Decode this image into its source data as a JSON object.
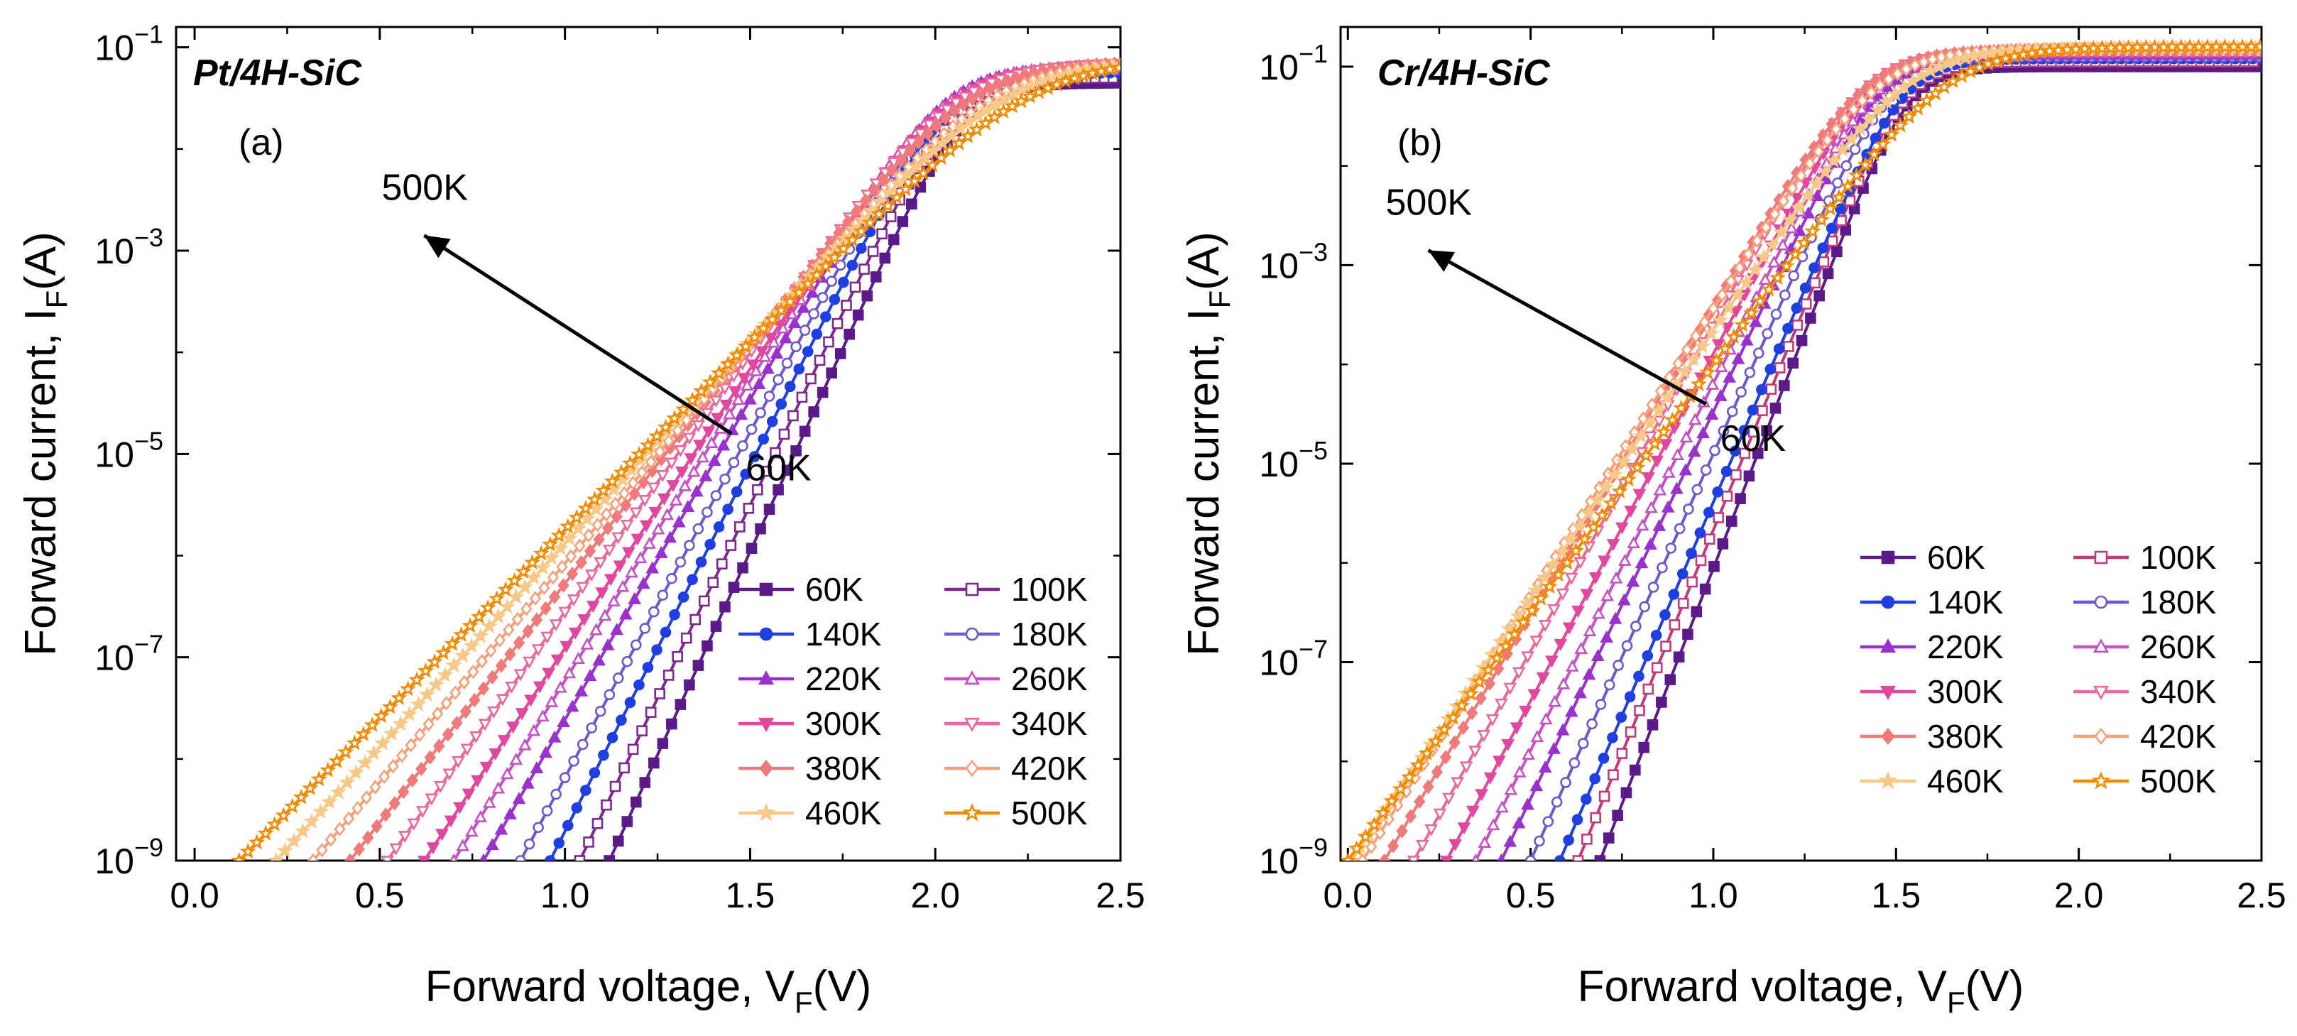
{
  "chart_data": [
    {
      "type": "line",
      "panel_title": "Pt/4H-SiC",
      "panel_tag": "(a)",
      "xlabel": "Forward voltage, V",
      "xlabel_sub": "F",
      "xlabel_unit": "(V)",
      "ylabel": "Forward current,  I",
      "ylabel_sub": "F",
      "ylabel_unit": "(A)",
      "yscale": "log",
      "xlim": [
        -0.05,
        2.5
      ],
      "ylim_exp": [
        -9,
        -0.8
      ],
      "xticks": [
        "0.0",
        "0.5",
        "1.0",
        "1.5",
        "2.0",
        "2.5"
      ],
      "xtick_values": [
        0,
        0.5,
        1.0,
        1.5,
        2.0,
        2.5
      ],
      "yticks_exp": [
        -9,
        -7,
        -5,
        -3,
        -1
      ],
      "arrow": {
        "from_label": "60K",
        "to_label": "500K",
        "from": [
          1.45,
          -4.8
        ],
        "to": [
          0.62,
          -2.85
        ]
      },
      "series": [
        {
          "name": "60K",
          "color": "#5a1a8a",
          "marker": "square-filled",
          "onset": 1.12,
          "slope": 8.0,
          "sat": -1.35
        },
        {
          "name": "100K",
          "color": "#7b2a8c",
          "marker": "square-open",
          "onset": 1.04,
          "slope": 7.6,
          "sat": -1.3
        },
        {
          "name": "140K",
          "color": "#1f3fe0",
          "marker": "circle-filled",
          "onset": 0.96,
          "slope": 7.2,
          "sat": -1.25
        },
        {
          "name": "180K",
          "color": "#6a5acd",
          "marker": "circle-open",
          "onset": 0.88,
          "slope": 6.8,
          "sat": -1.22
        },
        {
          "name": "220K",
          "color": "#9932cc",
          "marker": "triangle-filled",
          "onset": 0.78,
          "slope": 6.3,
          "sat": -1.2
        },
        {
          "name": "260K",
          "color": "#c452c4",
          "marker": "triangle-open",
          "onset": 0.7,
          "slope": 5.9,
          "sat": -1.18
        },
        {
          "name": "300K",
          "color": "#e0479e",
          "marker": "tridown-filled",
          "onset": 0.62,
          "slope": 5.5,
          "sat": -1.17
        },
        {
          "name": "340K",
          "color": "#e8699a",
          "marker": "tridown-open",
          "onset": 0.52,
          "slope": 5.1,
          "sat": -1.15
        },
        {
          "name": "380K",
          "color": "#f07a7a",
          "marker": "diamond-filled",
          "onset": 0.42,
          "slope": 4.7,
          "sat": -1.14
        },
        {
          "name": "420K",
          "color": "#f4a07a",
          "marker": "diamond-open",
          "onset": 0.32,
          "slope": 4.3,
          "sat": -1.13
        },
        {
          "name": "460K",
          "color": "#f8c888",
          "marker": "star-filled",
          "onset": 0.22,
          "slope": 4.0,
          "sat": -1.12
        },
        {
          "name": "500K",
          "color": "#f08a00",
          "marker": "star-open",
          "onset": 0.12,
          "slope": 3.7,
          "sat": -1.1
        }
      ]
    },
    {
      "type": "line",
      "panel_title": "Cr/4H-SiC",
      "panel_tag": "(b)",
      "xlabel": "Forward voltage, V",
      "xlabel_sub": "F",
      "xlabel_unit": "(V)",
      "ylabel": "Forward current,  I",
      "ylabel_sub": "F",
      "ylabel_unit": "(A)",
      "yscale": "log",
      "xlim": [
        -0.02,
        2.5
      ],
      "ylim_exp": [
        -9,
        -0.6
      ],
      "xticks": [
        "0.0",
        "0.5",
        "1.0",
        "1.5",
        "2.0",
        "2.5"
      ],
      "xtick_values": [
        0,
        0.5,
        1.0,
        1.5,
        2.0,
        2.5
      ],
      "yticks_exp": [
        -9,
        -7,
        -5,
        -3,
        -1
      ],
      "arrow": {
        "from_label": "60K",
        "to_label": "500K",
        "from": [
          0.98,
          -4.4
        ],
        "to": [
          0.22,
          -2.85
        ]
      },
      "series": [
        {
          "name": "60K",
          "color": "#5a1a8a",
          "marker": "square-filled",
          "onset": 0.69,
          "slope": 9.5,
          "sat": -1.0
        },
        {
          "name": "100K",
          "color": "#c23a7a",
          "marker": "square-open",
          "onset": 0.63,
          "slope": 9.0,
          "sat": -0.95
        },
        {
          "name": "140K",
          "color": "#1f3fe0",
          "marker": "circle-filled",
          "onset": 0.58,
          "slope": 8.6,
          "sat": -0.92
        },
        {
          "name": "180K",
          "color": "#6a5acd",
          "marker": "circle-open",
          "onset": 0.5,
          "slope": 8.2,
          "sat": -0.9
        },
        {
          "name": "220K",
          "color": "#9932cc",
          "marker": "triangle-filled",
          "onset": 0.42,
          "slope": 7.8,
          "sat": -0.88
        },
        {
          "name": "260K",
          "color": "#c452c4",
          "marker": "triangle-open",
          "onset": 0.35,
          "slope": 7.4,
          "sat": -0.86
        },
        {
          "name": "300K",
          "color": "#e0479e",
          "marker": "tridown-filled",
          "onset": 0.27,
          "slope": 7.0,
          "sat": -0.85
        },
        {
          "name": "340K",
          "color": "#e8699a",
          "marker": "tridown-open",
          "onset": 0.18,
          "slope": 6.6,
          "sat": -0.84
        },
        {
          "name": "380K",
          "color": "#f07a7a",
          "marker": "diamond-filled",
          "onset": 0.1,
          "slope": 6.2,
          "sat": -0.83
        },
        {
          "name": "420K",
          "color": "#f4a07a",
          "marker": "diamond-open",
          "onset": 0.04,
          "slope": 5.8,
          "sat": -0.82
        },
        {
          "name": "460K",
          "color": "#f8c888",
          "marker": "star-filled",
          "onset": 0.01,
          "slope": 5.4,
          "sat": -0.81
        },
        {
          "name": "500K",
          "color": "#f08a00",
          "marker": "star-open",
          "onset": 0.0,
          "slope": 5.0,
          "sat": -0.8
        }
      ]
    }
  ]
}
